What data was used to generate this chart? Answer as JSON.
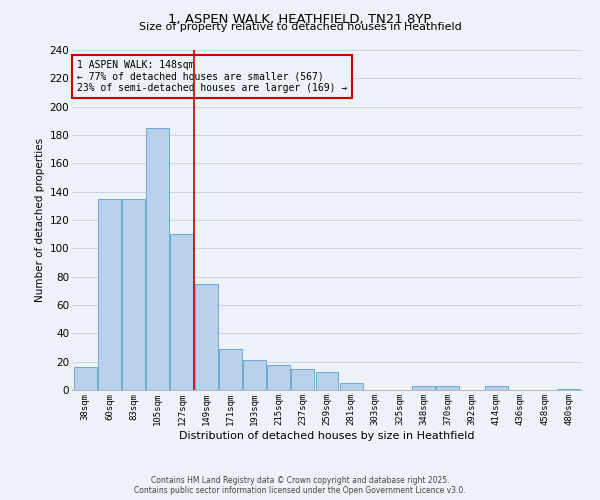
{
  "title_line1": "1, ASPEN WALK, HEATHFIELD, TN21 8YP",
  "title_line2": "Size of property relative to detached houses in Heathfield",
  "xlabel": "Distribution of detached houses by size in Heathfield",
  "ylabel": "Number of detached properties",
  "bar_labels": [
    "38sqm",
    "60sqm",
    "83sqm",
    "105sqm",
    "127sqm",
    "149sqm",
    "171sqm",
    "193sqm",
    "215sqm",
    "237sqm",
    "259sqm",
    "281sqm",
    "303sqm",
    "325sqm",
    "348sqm",
    "370sqm",
    "392sqm",
    "414sqm",
    "436sqm",
    "458sqm",
    "480sqm"
  ],
  "bar_values": [
    16,
    135,
    135,
    185,
    110,
    75,
    29,
    21,
    18,
    15,
    13,
    5,
    0,
    0,
    3,
    3,
    0,
    3,
    0,
    0,
    1
  ],
  "bar_color": "#b8d0ea",
  "bar_edge_color": "#6aaad4",
  "grid_color": "#c8d4e4",
  "background_color": "#edf2f9",
  "vline_color": "#cc0000",
  "annotation_title": "1 ASPEN WALK: 148sqm",
  "annotation_line1": "← 77% of detached houses are smaller (567)",
  "annotation_line2": "23% of semi-detached houses are larger (169) →",
  "annotation_box_color": "#cc0000",
  "ylim": [
    0,
    240
  ],
  "yticks": [
    0,
    20,
    40,
    60,
    80,
    100,
    120,
    140,
    160,
    180,
    200,
    220,
    240
  ],
  "footnote1": "Contains HM Land Registry data © Crown copyright and database right 2025.",
  "footnote2": "Contains public sector information licensed under the Open Government Licence v3.0."
}
